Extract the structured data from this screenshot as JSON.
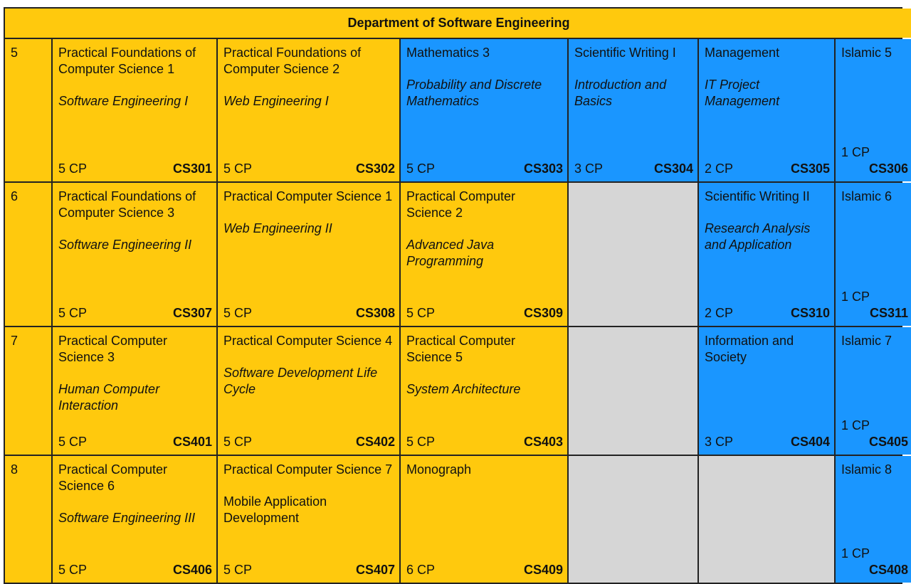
{
  "title": "Department of Software Engineering",
  "colors": {
    "core": "#FFC90D",
    "elective": "#1A96FF",
    "empty": "#D6D6D6"
  },
  "rows": [
    {
      "semester": "5",
      "cells": [
        {
          "title": "Practical Foundations of Computer Science 1",
          "subtitle": "Software Engineering I",
          "italic": true,
          "cp": "5 CP",
          "code": "CS301",
          "color": "yellow"
        },
        {
          "title": "Practical Foundations of Computer Science 2",
          "subtitle": "Web Engineering I",
          "italic": true,
          "cp": "5 CP",
          "code": "CS302",
          "color": "yellow"
        },
        {
          "title": "Mathematics  3",
          "subtitle": "Probability and Discrete Mathematics",
          "italic": true,
          "cp": "5 CP",
          "code": "CS303",
          "color": "blue"
        },
        {
          "title": "Scientific Writing  I",
          "subtitle": "Introduction and Basics",
          "italic": true,
          "cp": "3 CP",
          "code": "CS304",
          "color": "blue"
        },
        {
          "title": "Management",
          "subtitle": "IT Project Management",
          "italic": true,
          "cp": "2 CP",
          "code": "CS305",
          "color": "blue"
        },
        {
          "title": "Islamic 5",
          "cp": "1 CP",
          "code": "CS306",
          "color": "blue",
          "stack": true
        }
      ]
    },
    {
      "semester": "6",
      "cells": [
        {
          "title": "Practical Foundations of Computer Science 3",
          "subtitle": "Software Engineering II",
          "italic": true,
          "cp": "5 CP",
          "code": "CS307",
          "color": "yellow"
        },
        {
          "title": "Practical Computer Science 1",
          "subtitle": "Web Engineering II",
          "italic": true,
          "cp": "5 CP",
          "code": "CS308",
          "color": "yellow"
        },
        {
          "title": "Practical Computer Science 2",
          "subtitle": "Advanced Java Programming",
          "italic": true,
          "cp": "5 CP",
          "code": "CS309",
          "color": "yellow"
        },
        {
          "color": "grey"
        },
        {
          "title": "Scientific Writing  II",
          "subtitle": "Research Analysis and Application",
          "italic": true,
          "cp": "2 CP",
          "code": "CS310",
          "color": "blue",
          "extra_gap": true
        },
        {
          "title": "Islamic 6",
          "cp": "1 CP",
          "code": "CS311",
          "color": "blue",
          "stack": true
        }
      ]
    },
    {
      "semester": "7",
      "cells": [
        {
          "title": "Practical Computer Science 3",
          "subtitle": "Human Computer Interaction",
          "italic": true,
          "cp": "5 CP",
          "code": "CS401",
          "color": "yellow"
        },
        {
          "title": "Practical Computer Science 4",
          "subtitle": "Software Development Life Cycle",
          "italic": true,
          "cp": "5 CP",
          "code": "CS402",
          "color": "yellow"
        },
        {
          "title": "Practical Computer Science 5",
          "subtitle": "System Architecture",
          "italic": true,
          "cp": "5 CP",
          "code": "CS403",
          "color": "yellow"
        },
        {
          "color": "grey"
        },
        {
          "title": "Information and Society",
          "cp": "3 CP",
          "code": "CS404",
          "color": "blue"
        },
        {
          "title": "Islamic 7",
          "cp": "1 CP",
          "code": "CS405",
          "color": "blue",
          "stack": true
        }
      ]
    },
    {
      "semester": "8",
      "cells": [
        {
          "title": "Practical Computer Science 6",
          "subtitle": "Software Engineering III",
          "italic": true,
          "cp": "5 CP",
          "code": "CS406",
          "color": "yellow"
        },
        {
          "title": "Practical Computer Science 7",
          "subtitle": "Mobile Application Development",
          "italic": false,
          "cp": "5 CP",
          "code": "CS407",
          "color": "yellow"
        },
        {
          "title": "Monograph",
          "cp": "6 CP",
          "code": "CS409",
          "color": "yellow"
        },
        {
          "color": "grey"
        },
        {
          "color": "grey"
        },
        {
          "title": "Islamic 8",
          "cp": "1 CP",
          "code": "CS408",
          "color": "blue",
          "stack": true
        }
      ]
    }
  ]
}
